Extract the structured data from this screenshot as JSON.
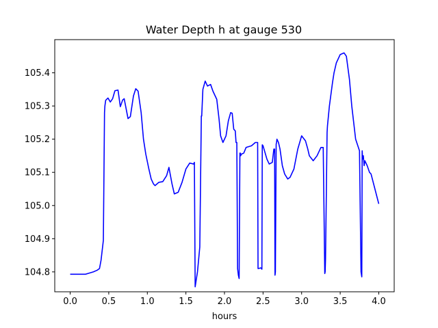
{
  "chart_data": {
    "type": "line",
    "title": "Water Depth h at gauge 530",
    "xlabel": "hours",
    "ylabel": "",
    "xlim": [
      -0.2,
      4.2
    ],
    "ylim": [
      104.74,
      105.5
    ],
    "xticks": [
      0.0,
      0.5,
      1.0,
      1.5,
      2.0,
      2.5,
      3.0,
      3.5,
      4.0
    ],
    "xtick_labels": [
      "0.0",
      "0.5",
      "1.0",
      "1.5",
      "2.0",
      "2.5",
      "3.0",
      "3.5",
      "4.0"
    ],
    "yticks": [
      104.8,
      104.9,
      105.0,
      105.1,
      105.2,
      105.3,
      105.4
    ],
    "ytick_labels": [
      "104.8",
      "104.9",
      "105.0",
      "105.1",
      "105.2",
      "105.3",
      "105.4"
    ],
    "grid": false,
    "series": [
      {
        "color": "#0000ff",
        "x": [
          0.0,
          0.2,
          0.3,
          0.35,
          0.38,
          0.4,
          0.43,
          0.445,
          0.45,
          0.46,
          0.49,
          0.52,
          0.55,
          0.58,
          0.62,
          0.65,
          0.68,
          0.7,
          0.75,
          0.78,
          0.82,
          0.85,
          0.88,
          0.92,
          0.95,
          0.98,
          1.02,
          1.05,
          1.08,
          1.1,
          1.15,
          1.2,
          1.25,
          1.28,
          1.32,
          1.35,
          1.4,
          1.45,
          1.5,
          1.55,
          1.6,
          1.61,
          1.62,
          1.65,
          1.68,
          1.7,
          1.705,
          1.72,
          1.75,
          1.78,
          1.82,
          1.85,
          1.9,
          1.93,
          1.95,
          1.98,
          2.02,
          2.05,
          2.08,
          2.1,
          2.12,
          2.14,
          2.15,
          2.16,
          2.17,
          2.18,
          2.19,
          2.2,
          2.205,
          2.21,
          2.22,
          2.25,
          2.28,
          2.32,
          2.35,
          2.4,
          2.43,
          2.435,
          2.44,
          2.47,
          2.48,
          2.485,
          2.49,
          2.5,
          2.55,
          2.58,
          2.62,
          2.64,
          2.65,
          2.655,
          2.66,
          2.67,
          2.675,
          2.68,
          2.7,
          2.72,
          2.75,
          2.78,
          2.82,
          2.85,
          2.9,
          2.95,
          3.0,
          3.05,
          3.08,
          3.1,
          3.15,
          3.2,
          3.25,
          3.28,
          3.3,
          3.305,
          3.31,
          3.33,
          3.335,
          3.36,
          3.4,
          3.42,
          3.45,
          3.5,
          3.55,
          3.58,
          3.62,
          3.65,
          3.7,
          3.75,
          3.77,
          3.78,
          3.785,
          3.79,
          3.8,
          3.81,
          3.82,
          3.85,
          3.88,
          3.9,
          3.95,
          4.0
        ],
        "y": [
          104.793,
          104.793,
          104.8,
          104.805,
          104.81,
          104.835,
          104.895,
          105.28,
          105.3,
          105.317,
          105.324,
          105.312,
          105.322,
          105.346,
          105.348,
          105.298,
          105.318,
          105.322,
          105.262,
          105.268,
          105.33,
          105.352,
          105.345,
          105.28,
          105.2,
          105.155,
          105.11,
          105.08,
          105.065,
          105.06,
          105.07,
          105.072,
          105.09,
          105.115,
          105.065,
          105.035,
          105.04,
          105.07,
          105.11,
          105.128,
          105.125,
          105.13,
          104.755,
          104.8,
          104.875,
          105.27,
          105.27,
          105.35,
          105.375,
          105.36,
          105.365,
          105.345,
          105.32,
          105.26,
          105.21,
          105.19,
          105.21,
          105.255,
          105.28,
          105.278,
          105.23,
          105.225,
          105.19,
          105.19,
          104.81,
          104.79,
          104.78,
          105.158,
          105.158,
          105.15,
          105.155,
          105.158,
          105.175,
          105.178,
          105.18,
          105.19,
          105.19,
          104.81,
          104.81,
          104.812,
          104.81,
          104.808,
          105.183,
          105.18,
          105.14,
          105.125,
          105.13,
          105.17,
          105.17,
          104.79,
          104.8,
          105.185,
          105.19,
          105.2,
          105.19,
          105.17,
          105.12,
          105.095,
          105.08,
          105.085,
          105.11,
          105.17,
          105.21,
          105.195,
          105.17,
          105.15,
          105.135,
          105.15,
          105.175,
          105.175,
          104.795,
          104.8,
          104.84,
          105.22,
          105.24,
          105.3,
          105.37,
          105.4,
          105.43,
          105.455,
          105.46,
          105.45,
          105.38,
          105.3,
          105.2,
          105.165,
          104.8,
          104.785,
          105.165,
          105.14,
          105.15,
          105.12,
          105.135,
          105.12,
          105.1,
          105.095,
          105.05,
          105.005
        ]
      }
    ]
  }
}
